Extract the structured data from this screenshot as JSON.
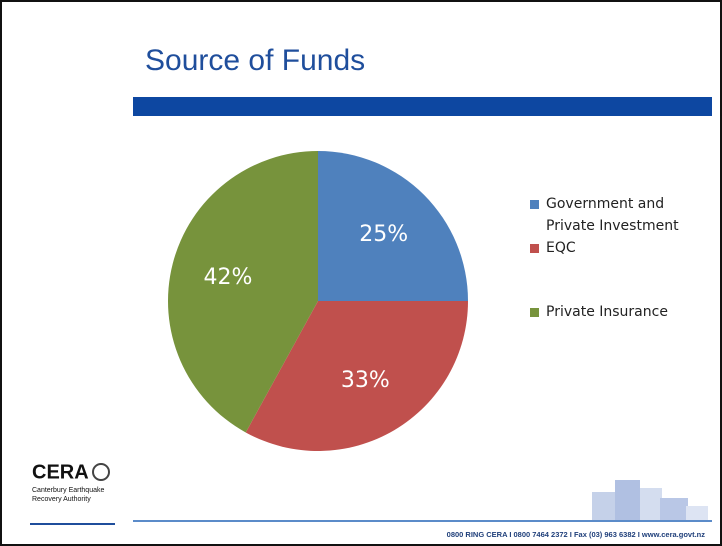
{
  "chart_data": {
    "type": "pie",
    "title": "Source of Funds",
    "categories": [
      "Government and Private Investment",
      "EQC",
      "Private Insurance"
    ],
    "values": [
      25,
      33,
      42
    ],
    "value_labels": [
      "25%",
      "33%",
      "42%"
    ],
    "colors": [
      "#4f81bd",
      "#c0504d",
      "#77933c"
    ],
    "legend": "right"
  },
  "footer": {
    "logo": "CERA",
    "org_line1": "Canterbury Earthquake",
    "org_line2": "Recovery Authority",
    "contact": "0800 RING CERA  I  0800 7464 2372  I  Fax (03) 963 6382  I  www.cera.govt.nz"
  }
}
